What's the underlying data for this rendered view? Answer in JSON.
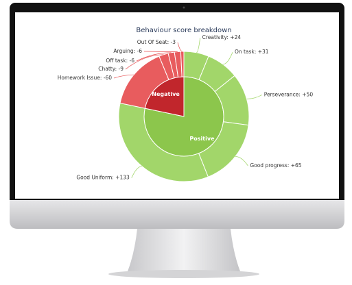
{
  "chart_data": {
    "type": "sunburst",
    "title": "Behaviour score breakdown",
    "rings": [
      {
        "labels": [
          "Positive",
          "Negative"
        ],
        "values": [
          303,
          -84
        ],
        "colors": [
          "#8cc64c",
          "#c1262c"
        ]
      },
      {
        "labels": [
          "Creativity: +24",
          "On task: +31",
          "Perseverance: +50",
          "Good progress: +65",
          "Good Uniform: +133",
          "Homework Issue: -60",
          "Chatty: -9",
          "Off task: -6",
          "Arguing: -6",
          "Out Of Seat: -3"
        ],
        "values": [
          24,
          31,
          50,
          65,
          133,
          -60,
          -9,
          -6,
          -6,
          -3
        ],
        "colors": [
          "#a2d66a",
          "#a2d66a",
          "#a2d66a",
          "#a2d66a",
          "#a2d66a",
          "#e85c5e",
          "#e85c5e",
          "#e85c5e",
          "#e85c5e",
          "#e85c5e"
        ]
      }
    ]
  }
}
